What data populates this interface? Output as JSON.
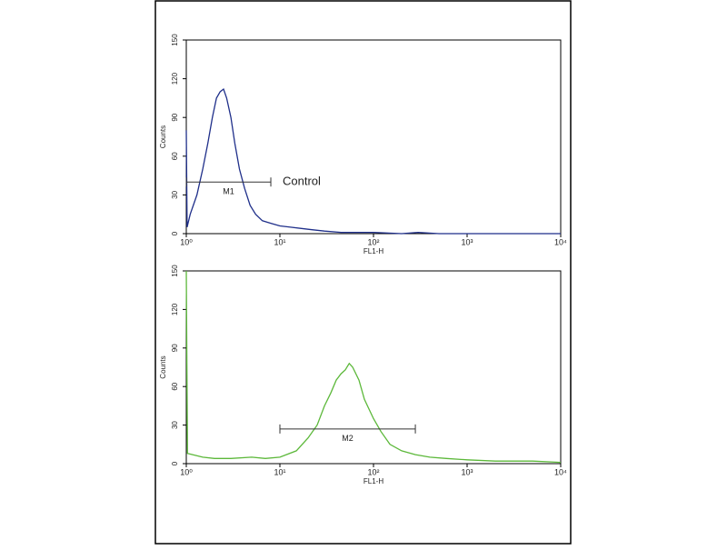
{
  "chart_data": [
    {
      "type": "line",
      "x_label": "FL1-H",
      "y_label": "Counts",
      "xscale": "log",
      "xlim": [
        1,
        10000
      ],
      "ylim": [
        0,
        150
      ],
      "xticks": [
        {
          "value": 1,
          "label": "10⁰"
        },
        {
          "value": 10,
          "label": "10¹"
        },
        {
          "value": 100,
          "label": "10²"
        },
        {
          "value": 1000,
          "label": "10³"
        },
        {
          "value": 10000,
          "label": "10⁴"
        }
      ],
      "yticks": [
        0,
        30,
        60,
        90,
        120,
        150
      ],
      "series": [
        {
          "color": "#1f2f8a",
          "x": [
            1,
            1.02,
            1.1,
            1.3,
            1.5,
            1.7,
            1.9,
            2.1,
            2.3,
            2.5,
            2.7,
            3.0,
            3.3,
            3.7,
            4.2,
            4.8,
            5.5,
            6.5,
            8,
            10,
            13,
            17,
            22,
            30,
            45,
            70,
            100,
            200,
            300,
            500,
            1000,
            10000
          ],
          "values": [
            80,
            5,
            15,
            30,
            50,
            70,
            90,
            105,
            110,
            112,
            105,
            90,
            70,
            50,
            35,
            22,
            15,
            10,
            8,
            6,
            5,
            4,
            3,
            2,
            1,
            1,
            1,
            0,
            1,
            0,
            0,
            0
          ]
        }
      ],
      "gates": [
        {
          "label": "M1",
          "xrange": [
            1,
            8
          ],
          "y": 40
        }
      ],
      "annotation": "Control"
    },
    {
      "type": "line",
      "x_label": "FL1-H",
      "y_label": "Counts",
      "xscale": "log",
      "xlim": [
        1,
        10000
      ],
      "ylim": [
        0,
        150
      ],
      "xticks": [
        {
          "value": 1,
          "label": "10⁰"
        },
        {
          "value": 10,
          "label": "10¹"
        },
        {
          "value": 100,
          "label": "10²"
        },
        {
          "value": 1000,
          "label": "10³"
        },
        {
          "value": 10000,
          "label": "10⁴"
        }
      ],
      "yticks": [
        0,
        30,
        60,
        90,
        120,
        150
      ],
      "series": [
        {
          "color": "#5cb83a",
          "x": [
            1,
            1.03,
            1.5,
            2,
            3,
            5,
            7,
            10,
            15,
            20,
            25,
            30,
            35,
            40,
            45,
            50,
            55,
            60,
            70,
            80,
            100,
            120,
            150,
            200,
            280,
            400,
            600,
            1000,
            2000,
            5000,
            10000
          ],
          "values": [
            150,
            8,
            5,
            4,
            4,
            5,
            4,
            5,
            10,
            20,
            30,
            45,
            55,
            65,
            70,
            73,
            78,
            75,
            65,
            50,
            35,
            25,
            15,
            10,
            7,
            5,
            4,
            3,
            2,
            2,
            1
          ]
        }
      ],
      "gates": [
        {
          "label": "M2",
          "xrange": [
            10,
            280
          ],
          "y": 27
        }
      ]
    }
  ]
}
